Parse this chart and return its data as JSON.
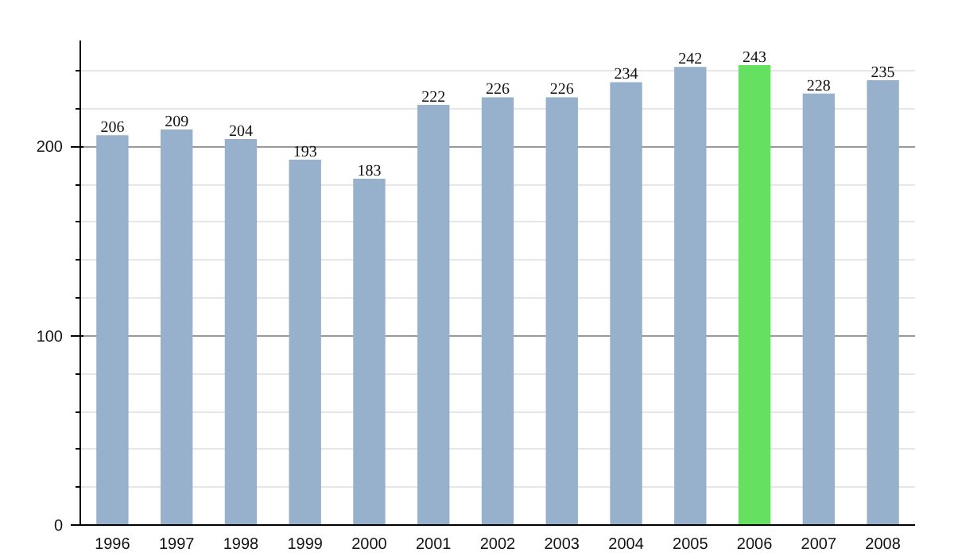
{
  "chart_data": {
    "type": "bar",
    "categories": [
      "1996",
      "1997",
      "1998",
      "1999",
      "2000",
      "2001",
      "2002",
      "2003",
      "2004",
      "2005",
      "2006",
      "2007",
      "2008"
    ],
    "values": [
      206,
      209,
      204,
      193,
      183,
      222,
      226,
      226,
      234,
      242,
      243,
      228,
      235
    ],
    "colors": [
      "#97b0cb",
      "#97b0cb",
      "#97b0cb",
      "#97b0cb",
      "#97b0cb",
      "#97b0cb",
      "#97b0cb",
      "#97b0cb",
      "#97b0cb",
      "#97b0cb",
      "#66e060",
      "#97b0cb",
      "#97b0cb"
    ],
    "ylim": [
      0,
      256
    ],
    "yticks": [
      0,
      100,
      200
    ],
    "grid": "y",
    "data_labels": true
  }
}
